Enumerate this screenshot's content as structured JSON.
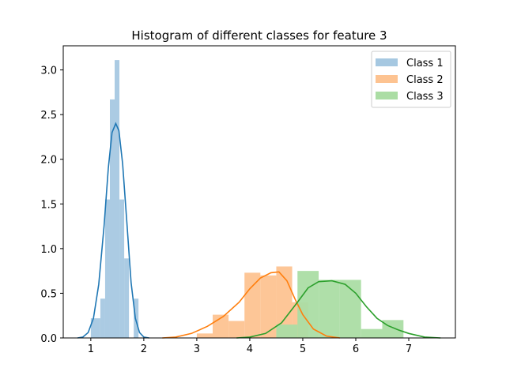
{
  "chart_data": {
    "type": "bar",
    "title": "Histogram of different classes for feature 3",
    "xlabel": "",
    "ylabel": "",
    "xlim": [
      0.48,
      7.88
    ],
    "ylim": [
      0,
      3.27
    ],
    "xticks": [
      1,
      2,
      3,
      4,
      5,
      6,
      7
    ],
    "yticks": [
      0.0,
      0.5,
      1.0,
      1.5,
      2.0,
      2.5,
      3.0
    ],
    "grid": false,
    "legend_position": "top-right",
    "series": [
      {
        "name": "Class 1",
        "bar_color": "#a6c8e1",
        "line_color": "#1f77b4",
        "bins": [
          {
            "x0": 1.0,
            "x1": 1.18,
            "y": 0.22
          },
          {
            "x0": 1.18,
            "x1": 1.27,
            "y": 0.44
          },
          {
            "x0": 1.27,
            "x1": 1.36,
            "y": 1.55
          },
          {
            "x0": 1.36,
            "x1": 1.45,
            "y": 2.67
          },
          {
            "x0": 1.45,
            "x1": 1.54,
            "y": 3.11
          },
          {
            "x0": 1.54,
            "x1": 1.63,
            "y": 1.55
          },
          {
            "x0": 1.63,
            "x1": 1.72,
            "y": 0.89
          },
          {
            "x0": 1.72,
            "x1": 1.81,
            "y": 0.0
          },
          {
            "x0": 1.81,
            "x1": 1.9,
            "y": 0.44
          }
        ],
        "kde": [
          [
            0.75,
            0.0
          ],
          [
            0.85,
            0.01
          ],
          [
            0.95,
            0.06
          ],
          [
            1.05,
            0.22
          ],
          [
            1.15,
            0.6
          ],
          [
            1.25,
            1.25
          ],
          [
            1.33,
            1.9
          ],
          [
            1.4,
            2.3
          ],
          [
            1.47,
            2.4
          ],
          [
            1.53,
            2.32
          ],
          [
            1.6,
            1.95
          ],
          [
            1.68,
            1.3
          ],
          [
            1.76,
            0.62
          ],
          [
            1.84,
            0.22
          ],
          [
            1.92,
            0.06
          ],
          [
            2.0,
            0.01
          ],
          [
            2.1,
            0.0
          ]
        ]
      },
      {
        "name": "Class 2",
        "bar_color": "#fdc391",
        "line_color": "#ff7f0e",
        "bins": [
          {
            "x0": 3.0,
            "x1": 3.3,
            "y": 0.05
          },
          {
            "x0": 3.3,
            "x1": 3.6,
            "y": 0.26
          },
          {
            "x0": 3.6,
            "x1": 3.9,
            "y": 0.19
          },
          {
            "x0": 3.9,
            "x1": 4.2,
            "y": 0.73
          },
          {
            "x0": 4.2,
            "x1": 4.5,
            "y": 0.7
          },
          {
            "x0": 4.5,
            "x1": 4.8,
            "y": 0.8
          },
          {
            "x0": 4.8,
            "x1": 5.1,
            "y": 0.4
          }
        ],
        "kde": [
          [
            2.35,
            0.0
          ],
          [
            2.6,
            0.01
          ],
          [
            2.9,
            0.05
          ],
          [
            3.2,
            0.13
          ],
          [
            3.5,
            0.24
          ],
          [
            3.8,
            0.4
          ],
          [
            4.0,
            0.55
          ],
          [
            4.2,
            0.67
          ],
          [
            4.4,
            0.73
          ],
          [
            4.55,
            0.74
          ],
          [
            4.7,
            0.64
          ],
          [
            4.85,
            0.44
          ],
          [
            5.0,
            0.26
          ],
          [
            5.2,
            0.1
          ],
          [
            5.45,
            0.02
          ],
          [
            5.7,
            0.0
          ]
        ]
      },
      {
        "name": "Class 3",
        "bar_color": "#abdda4",
        "line_color": "#2ca02c",
        "bins": [
          {
            "x0": 4.5,
            "x1": 4.9,
            "y": 0.15
          },
          {
            "x0": 4.9,
            "x1": 5.3,
            "y": 0.75
          },
          {
            "x0": 5.3,
            "x1": 5.7,
            "y": 0.65
          },
          {
            "x0": 5.7,
            "x1": 6.1,
            "y": 0.65
          },
          {
            "x0": 6.1,
            "x1": 6.5,
            "y": 0.1
          },
          {
            "x0": 6.5,
            "x1": 6.9,
            "y": 0.2
          }
        ],
        "kde": [
          [
            3.75,
            0.0
          ],
          [
            4.0,
            0.01
          ],
          [
            4.3,
            0.05
          ],
          [
            4.6,
            0.17
          ],
          [
            4.9,
            0.4
          ],
          [
            5.1,
            0.56
          ],
          [
            5.3,
            0.63
          ],
          [
            5.55,
            0.64
          ],
          [
            5.8,
            0.6
          ],
          [
            6.0,
            0.5
          ],
          [
            6.2,
            0.35
          ],
          [
            6.4,
            0.22
          ],
          [
            6.6,
            0.14
          ],
          [
            6.8,
            0.09
          ],
          [
            7.0,
            0.05
          ],
          [
            7.3,
            0.01
          ],
          [
            7.6,
            0.0
          ]
        ]
      }
    ]
  }
}
